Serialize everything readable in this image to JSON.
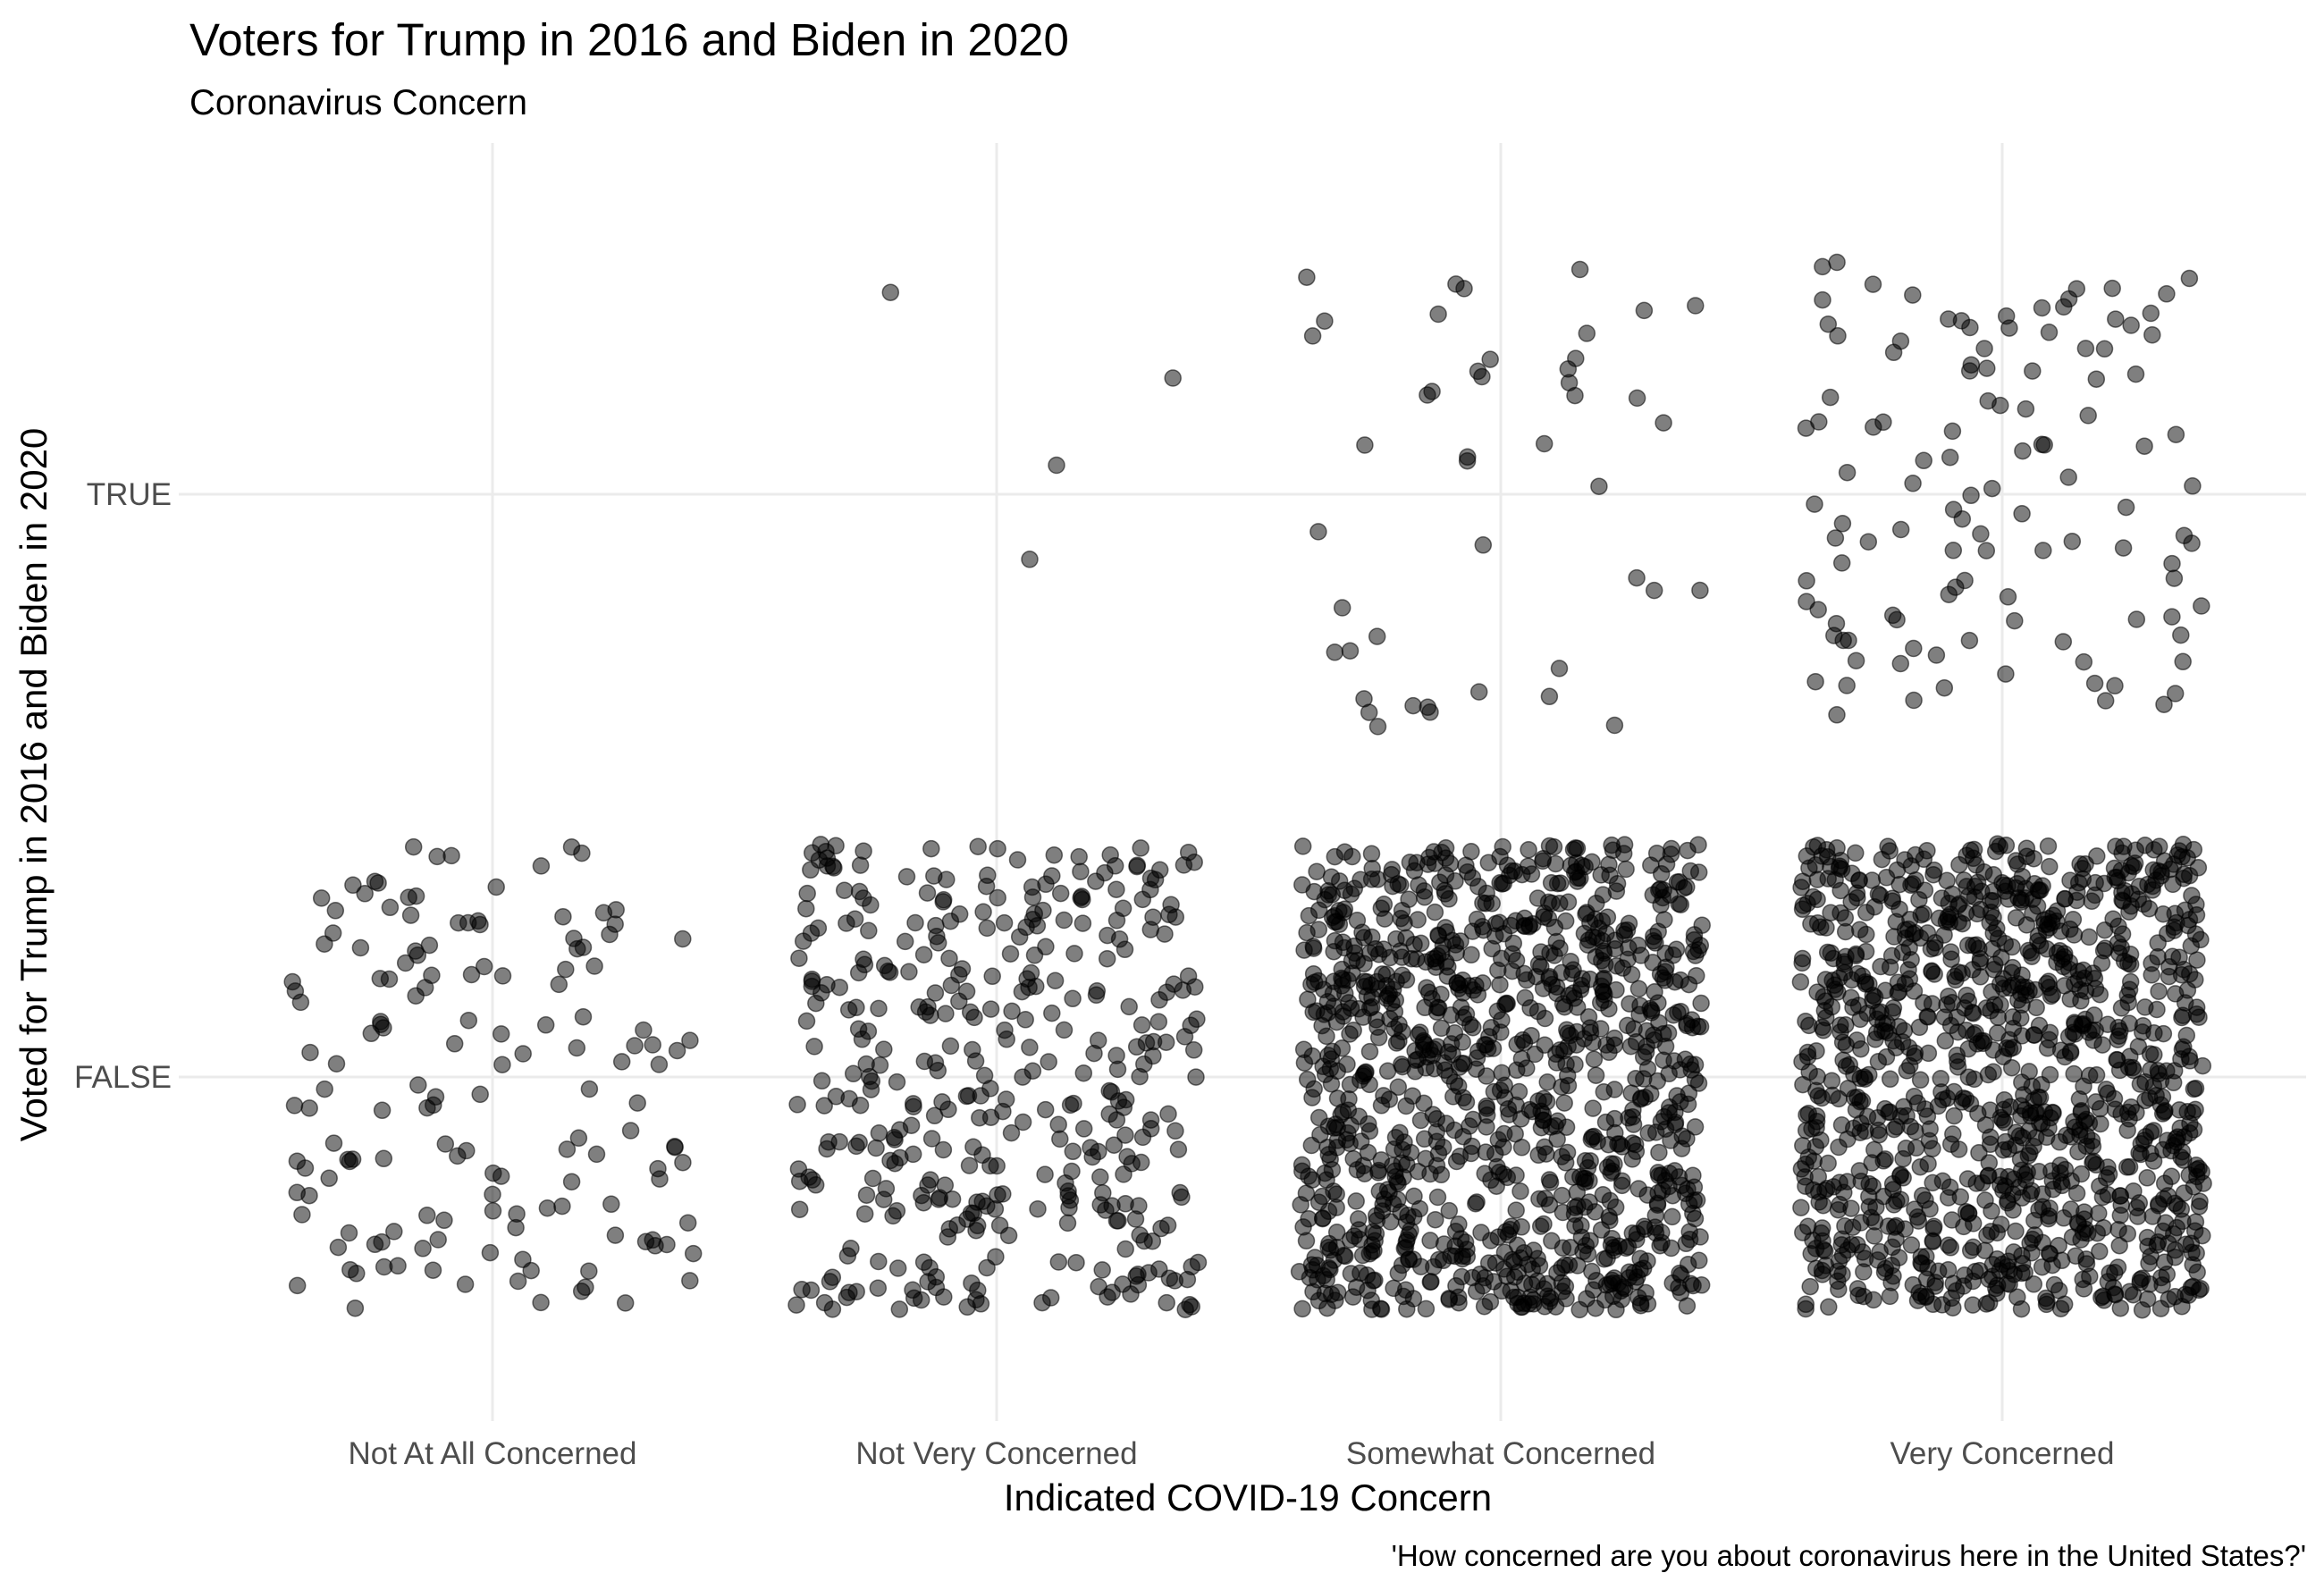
{
  "chart_data": {
    "type": "scatter",
    "title": "Voters for Trump in 2016 and Biden in 2020",
    "subtitle": "Coronavirus Concern",
    "xlabel": "Indicated COVID-19 Concern",
    "ylabel": "Voted for Trump in 2016 and Biden in 2020",
    "caption": "'How concerned are you about coronavirus here in the United States?'",
    "categories": [
      "Not At All Concerned",
      "Not Very Concerned",
      "Somewhat Concerned",
      "Very Concerned"
    ],
    "y_categories": [
      "FALSE",
      "TRUE"
    ],
    "jitter": {
      "width": 0.4,
      "height": 0.4
    },
    "point_color": "#000000",
    "point_alpha": 0.5,
    "grid": true,
    "counts": [
      {
        "category": "Not At All Concerned",
        "FALSE": 150,
        "TRUE": 0
      },
      {
        "category": "Not Very Concerned",
        "FALSE": 390,
        "TRUE": 4
      },
      {
        "category": "Somewhat Concerned",
        "FALSE": 1100,
        "TRUE": 45
      },
      {
        "category": "Very Concerned",
        "FALSE": 1150,
        "TRUE": 115
      }
    ]
  }
}
